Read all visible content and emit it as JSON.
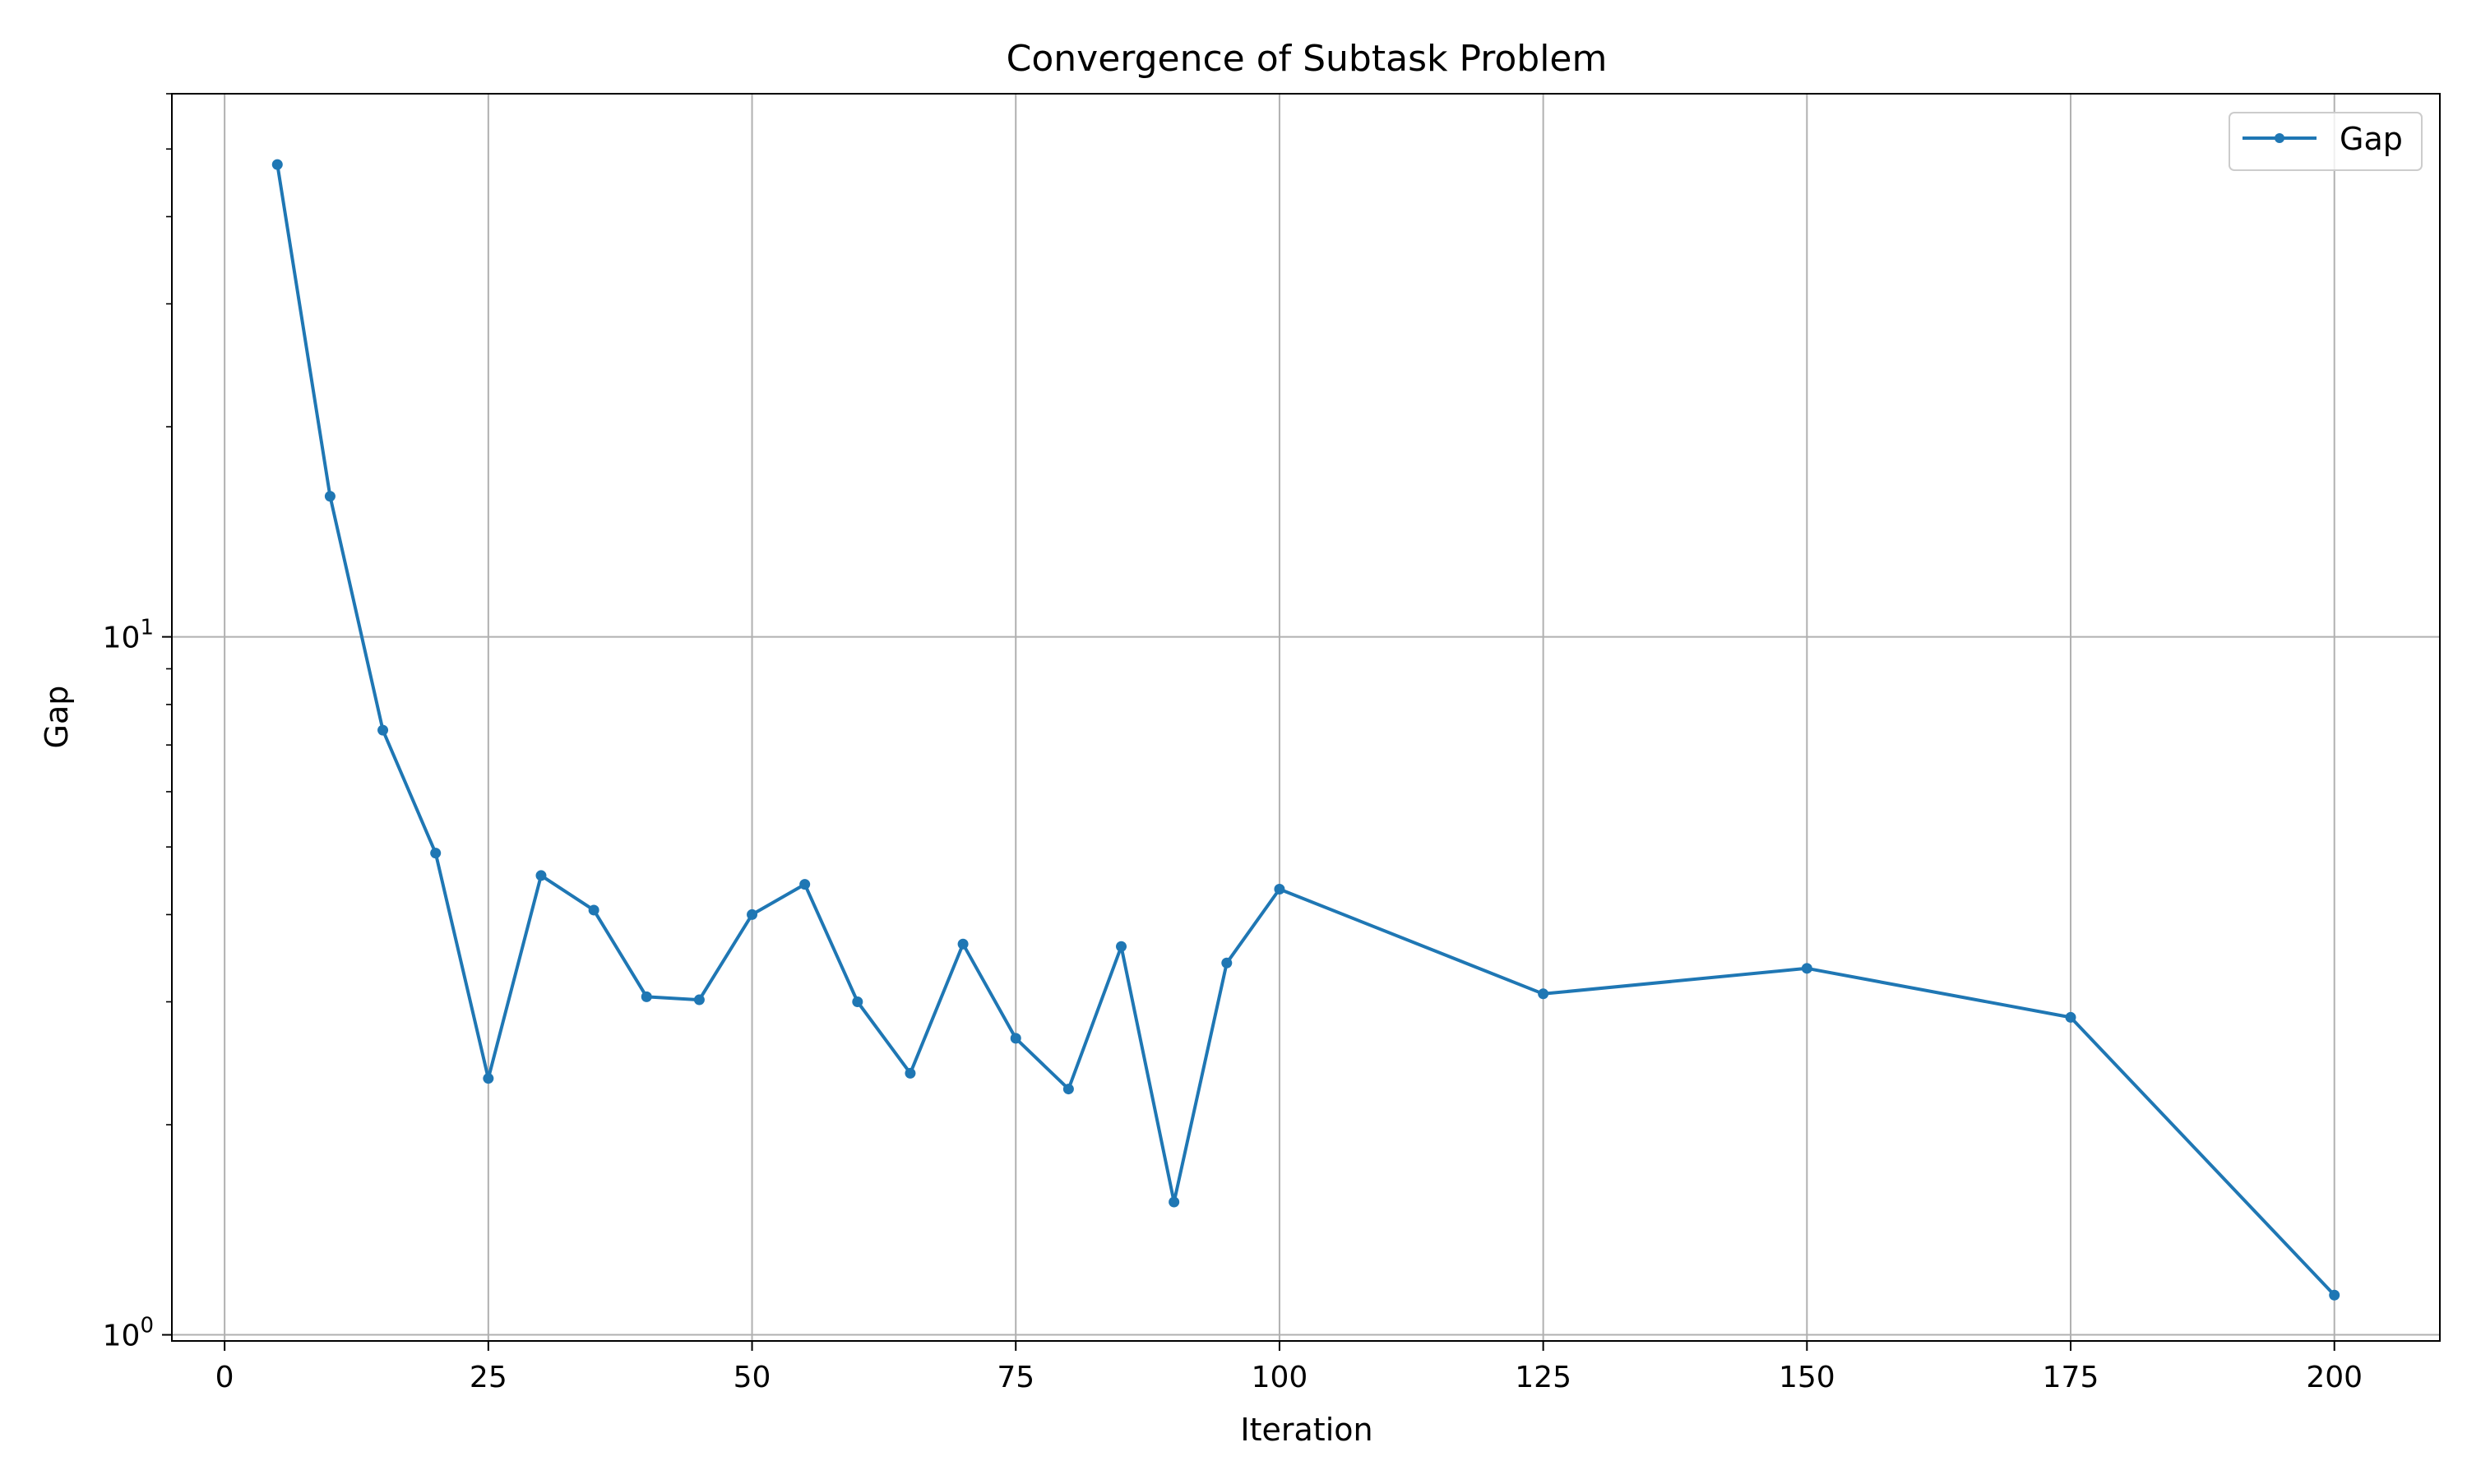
{
  "chart_data": {
    "type": "line",
    "title": "Convergence of Subtask Problem",
    "xlabel": "Iteration",
    "ylabel": "Gap",
    "yscale": "log",
    "xlim": [
      -5,
      210
    ],
    "ylim": [
      0.98,
      60
    ],
    "grid": true,
    "legend_position": "top-right",
    "x_ticks": [
      0,
      25,
      50,
      75,
      100,
      125,
      150,
      175,
      200
    ],
    "y_ticks": [
      {
        "value": 1,
        "base": "10",
        "exp": "0"
      },
      {
        "value": 10,
        "base": "10",
        "exp": "1"
      }
    ],
    "series": [
      {
        "name": "Gap",
        "color": "#1f77b4",
        "marker": "circle",
        "x": [
          5,
          10,
          15,
          20,
          25,
          30,
          35,
          40,
          45,
          50,
          55,
          60,
          65,
          70,
          75,
          80,
          85,
          90,
          95,
          100,
          125,
          150,
          175,
          200
        ],
        "y": [
          47.5,
          15.9,
          7.35,
          4.9,
          2.33,
          4.55,
          4.06,
          3.05,
          3.02,
          4.0,
          4.42,
          3.0,
          2.37,
          3.63,
          2.66,
          2.25,
          3.6,
          1.55,
          3.41,
          4.35,
          3.08,
          3.35,
          2.85,
          1.14
        ]
      }
    ]
  }
}
